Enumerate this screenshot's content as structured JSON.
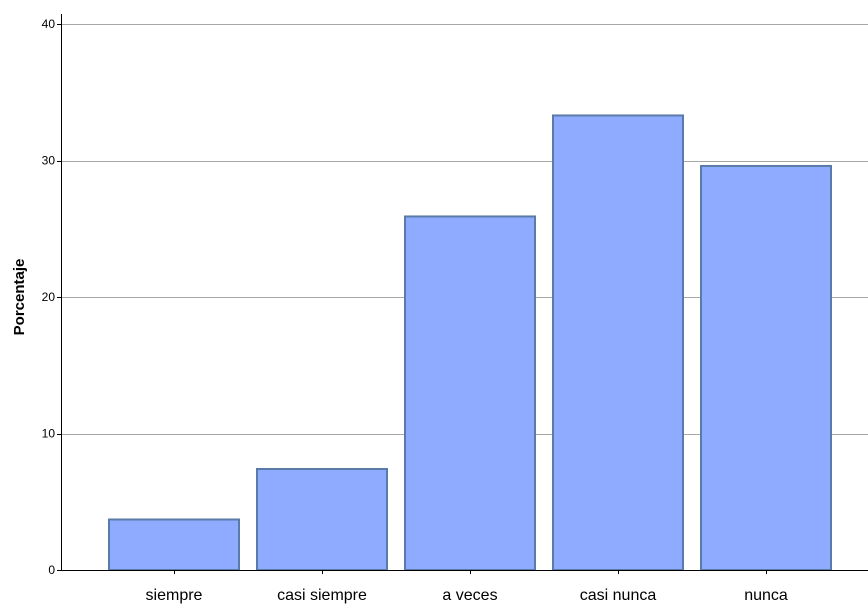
{
  "chart_data": {
    "type": "bar",
    "categories": [
      "siempre",
      "casi siempre",
      "a veces",
      "casi nunca",
      "nunca"
    ],
    "values": [
      3.7,
      7.4,
      25.9,
      33.3,
      29.6
    ],
    "title": "",
    "xlabel": "",
    "ylabel": "Porcentaje",
    "ylim": [
      0,
      40
    ],
    "yticks": [
      "0",
      "10",
      "20",
      "30",
      "40"
    ],
    "grid": true,
    "legend": "none",
    "colors": {
      "bar_fill": "#8fabff",
      "bar_stroke": "#5a7aa8",
      "grid": "#a6a6a6",
      "axis": "#000000"
    }
  }
}
